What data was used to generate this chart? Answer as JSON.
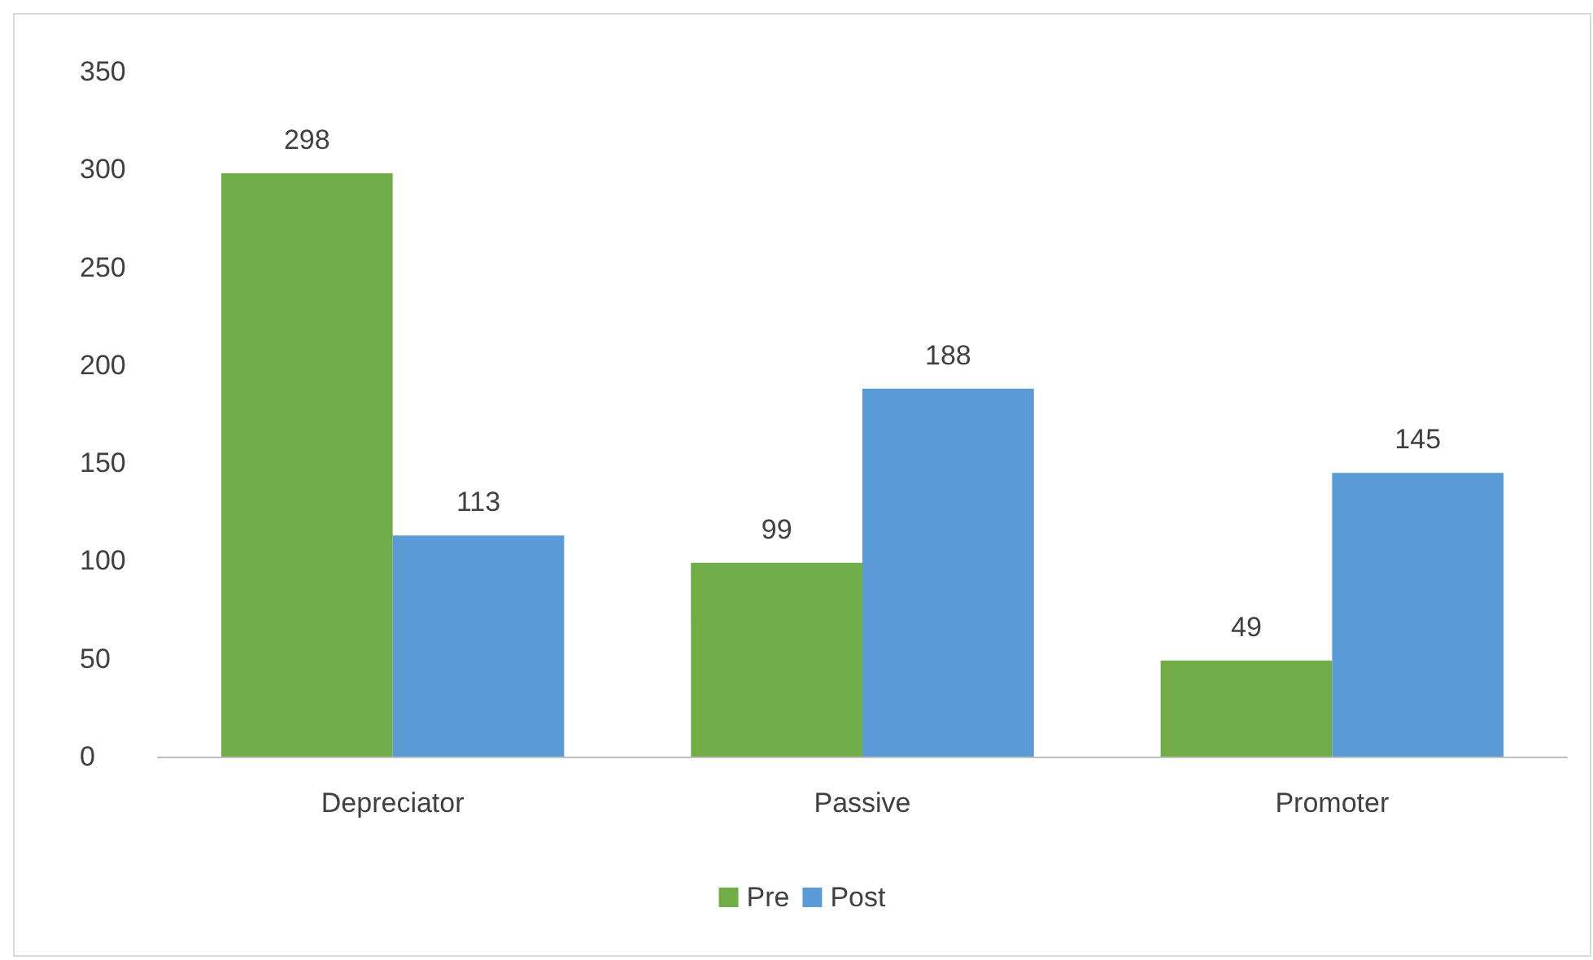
{
  "chart_data": {
    "type": "bar",
    "categories": [
      "Depreciator",
      "Passive",
      "Promoter"
    ],
    "series": [
      {
        "name": "Pre",
        "color": "#70ad47",
        "values": [
          298,
          99,
          49
        ]
      },
      {
        "name": "Post",
        "color": "#5b9bd5",
        "values": [
          113,
          188,
          145
        ]
      }
    ],
    "ylim": [
      0,
      350
    ],
    "yticks": [
      0,
      50,
      100,
      150,
      200,
      250,
      300,
      350
    ],
    "grid": false,
    "legend": "bottom",
    "data_labels": true
  }
}
